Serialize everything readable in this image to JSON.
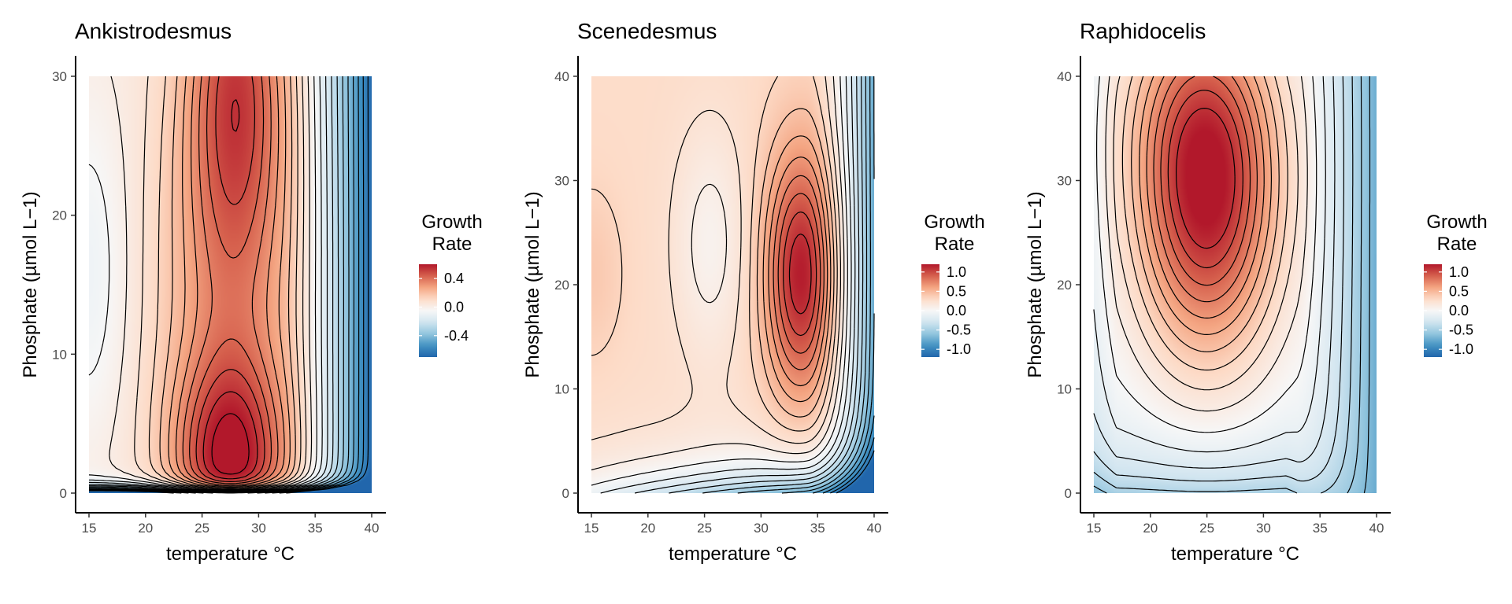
{
  "chart_data": [
    {
      "type": "heatmap",
      "title": "Ankistrodesmus",
      "xlabel": "temperature °C",
      "ylabel": "Phosphate (µmol L−1)",
      "xlim": [
        15,
        40
      ],
      "ylim": [
        0,
        30
      ],
      "xticks": [
        15,
        20,
        25,
        30,
        35,
        40
      ],
      "yticks": [
        0,
        10,
        20,
        30
      ],
      "contours": true,
      "grid": false,
      "legend": {
        "title": "Growth Rate",
        "placement": "right",
        "range": [
          -0.7,
          0.6
        ],
        "ticks": [
          0.4,
          0.0,
          -0.4
        ],
        "tick_labels": [
          "0.4",
          "0.0",
          "-0.4"
        ]
      },
      "colors": {
        "low": "#2166ac",
        "mid": "#f7f7f7",
        "high": "#b2182b"
      },
      "features": [
        {
          "label": "max",
          "temperature": 27.5,
          "phosphate": 1.8,
          "growth_rate": 0.55
        },
        {
          "label": "max",
          "temperature": 28,
          "phosphate": 30,
          "growth_rate": 0.45
        },
        {
          "label": "min",
          "temperature": 40,
          "phosphate": 0,
          "growth_rate": -0.7
        }
      ]
    },
    {
      "type": "heatmap",
      "title": "Scenedesmus",
      "xlabel": "temperature °C",
      "ylabel": "Phosphate (µmol L−1)",
      "xlim": [
        15,
        40
      ],
      "ylim": [
        0,
        40
      ],
      "xticks": [
        15,
        20,
        25,
        30,
        35,
        40
      ],
      "yticks": [
        0,
        10,
        20,
        30,
        40
      ],
      "contours": true,
      "grid": false,
      "legend": {
        "title": "Growth Rate",
        "placement": "right",
        "range": [
          -1.2,
          1.2
        ],
        "ticks": [
          1.0,
          0.5,
          0.0,
          -0.5,
          -1.0
        ],
        "tick_labels": [
          "1.0",
          "0.5",
          "0.0",
          "-0.5",
          "-1.0"
        ]
      },
      "colors": {
        "low": "#2166ac",
        "mid": "#f7f7f7",
        "high": "#b2182b"
      },
      "features": [
        {
          "label": "max",
          "temperature": 33.5,
          "phosphate": 21,
          "growth_rate": 1.0
        },
        {
          "label": "min",
          "temperature": 40,
          "phosphate": 0,
          "growth_rate": -0.8
        }
      ]
    },
    {
      "type": "heatmap",
      "title": "Raphidocelis",
      "xlabel": "temperature °C",
      "ylabel": "Phosphate (µmol L−1)",
      "xlim": [
        15,
        40
      ],
      "ylim": [
        0,
        40
      ],
      "xticks": [
        15,
        20,
        25,
        30,
        35,
        40
      ],
      "yticks": [
        0,
        10,
        20,
        30,
        40
      ],
      "contours": true,
      "grid": false,
      "legend": {
        "title": "Growth Rate",
        "placement": "right",
        "range": [
          -1.2,
          1.2
        ],
        "ticks": [
          1.0,
          0.5,
          0.0,
          -0.5,
          -1.0
        ],
        "tick_labels": [
          "1.0",
          "0.5",
          "0.0",
          "-0.5",
          "-1.0"
        ]
      },
      "colors": {
        "low": "#2166ac",
        "mid": "#f7f7f7",
        "high": "#b2182b"
      },
      "features": [
        {
          "label": "max",
          "temperature": 25,
          "phosphate": 28,
          "growth_rate": 1.1
        },
        {
          "label": "min",
          "temperature": 40,
          "phosphate": 10,
          "growth_rate": -0.6
        },
        {
          "label": "min",
          "temperature": 23,
          "phosphate": 0,
          "growth_rate": -0.3
        }
      ]
    }
  ]
}
